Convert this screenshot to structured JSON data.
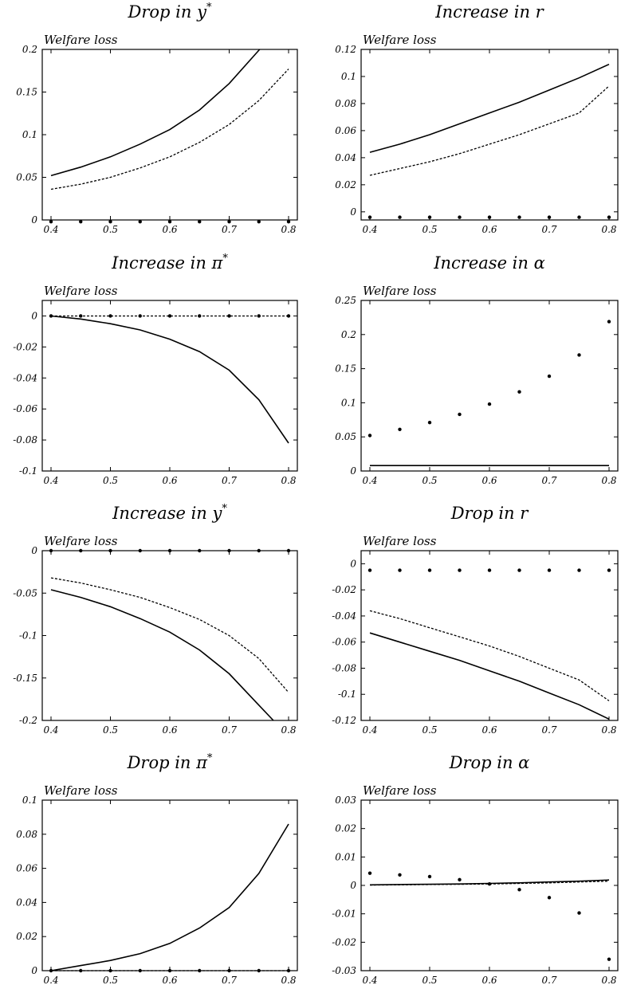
{
  "chart_data": [
    {
      "type": "line",
      "title": "Drop in y",
      "title_sup": "*",
      "ylabel": "Welfare loss",
      "xlim": [
        0.4,
        0.8
      ],
      "ylim": [
        0,
        0.2
      ],
      "xticks": [
        "0.4",
        "0.5",
        "0.6",
        "0.7",
        "0.8"
      ],
      "yticks": [
        {
          "v": 0,
          "label": "0"
        },
        {
          "v": 0.05,
          "label": "0.05"
        },
        {
          "v": 0.1,
          "label": "0.1"
        },
        {
          "v": 0.15,
          "label": "0.15"
        },
        {
          "v": 0.2,
          "label": "0.2"
        }
      ],
      "x": [
        0.4,
        0.45,
        0.5,
        0.55,
        0.6,
        0.65,
        0.7,
        0.75,
        0.8
      ],
      "series": [
        {
          "style": "solid",
          "values": [
            0.052,
            0.062,
            0.074,
            0.089,
            0.106,
            0.129,
            0.16,
            0.199,
            null
          ]
        },
        {
          "style": "dashed",
          "values": [
            0.036,
            0.042,
            0.05,
            0.061,
            0.074,
            0.091,
            0.112,
            0.14,
            0.177
          ]
        },
        {
          "style": "dots",
          "values": [
            -0.002,
            -0.002,
            -0.002,
            -0.002,
            -0.002,
            -0.002,
            -0.002,
            -0.002,
            -0.002
          ]
        }
      ]
    },
    {
      "type": "line",
      "title": "Increase in r",
      "title_sup": "",
      "ylabel": "Welfare loss",
      "xlim": [
        0.4,
        0.8
      ],
      "ylim": [
        -0.006,
        0.12
      ],
      "xticks": [
        "0.4",
        "0.5",
        "0.6",
        "0.7",
        "0.8"
      ],
      "yticks": [
        {
          "v": 0,
          "label": "0"
        },
        {
          "v": 0.02,
          "label": "0.02"
        },
        {
          "v": 0.04,
          "label": "0.04"
        },
        {
          "v": 0.06,
          "label": "0.06"
        },
        {
          "v": 0.08,
          "label": "0.08"
        },
        {
          "v": 0.1,
          "label": "0.1"
        },
        {
          "v": 0.12,
          "label": "0.12"
        }
      ],
      "x": [
        0.4,
        0.45,
        0.5,
        0.55,
        0.6,
        0.65,
        0.7,
        0.75,
        0.8
      ],
      "series": [
        {
          "style": "solid",
          "values": [
            0.044,
            0.05,
            0.057,
            0.065,
            0.073,
            0.081,
            0.09,
            0.099,
            0.109
          ]
        },
        {
          "style": "dashed",
          "values": [
            0.027,
            0.032,
            0.037,
            0.043,
            0.05,
            0.057,
            0.065,
            0.073,
            0.093
          ]
        },
        {
          "style": "dots",
          "values": [
            -0.004,
            -0.004,
            -0.004,
            -0.004,
            -0.004,
            -0.004,
            -0.004,
            -0.004,
            -0.004
          ]
        }
      ]
    },
    {
      "type": "line",
      "title": "Increase in π",
      "title_sup": "*",
      "ylabel": "Welfare loss",
      "xlim": [
        0.4,
        0.8
      ],
      "ylim": [
        -0.1,
        0.01
      ],
      "xticks": [
        "0.4",
        "0.5",
        "0.6",
        "0.7",
        "0.8"
      ],
      "yticks": [
        {
          "v": 0,
          "label": "0"
        },
        {
          "v": -0.02,
          "label": "-0.02"
        },
        {
          "v": -0.04,
          "label": "-0.04"
        },
        {
          "v": -0.06,
          "label": "-0.06"
        },
        {
          "v": -0.08,
          "label": "-0.08"
        },
        {
          "v": -0.1,
          "label": "-0.1"
        }
      ],
      "x": [
        0.4,
        0.45,
        0.5,
        0.55,
        0.6,
        0.65,
        0.7,
        0.75,
        0.8
      ],
      "series": [
        {
          "style": "solid",
          "values": [
            0.0,
            -0.002,
            -0.005,
            -0.009,
            -0.015,
            -0.023,
            -0.035,
            -0.054,
            -0.082
          ]
        },
        {
          "style": "dashed",
          "values": [
            0.0,
            0.0,
            0.0,
            0.0,
            0.0,
            0.0,
            0.0,
            0.0,
            0.0
          ]
        },
        {
          "style": "dots",
          "values": [
            0.0,
            0.0,
            0.0,
            0.0,
            0.0,
            0.0,
            0.0,
            0.0,
            0.0
          ]
        }
      ]
    },
    {
      "type": "line",
      "title": "Increase in α",
      "title_sup": "",
      "ylabel": "Welfare loss",
      "xlim": [
        0.4,
        0.8
      ],
      "ylim": [
        0,
        0.25
      ],
      "xticks": [
        "0.4",
        "0.5",
        "0.6",
        "0.7",
        "0.8"
      ],
      "yticks": [
        {
          "v": 0,
          "label": "0"
        },
        {
          "v": 0.05,
          "label": "0.05"
        },
        {
          "v": 0.1,
          "label": "0.1"
        },
        {
          "v": 0.15,
          "label": "0.15"
        },
        {
          "v": 0.2,
          "label": "0.2"
        },
        {
          "v": 0.25,
          "label": "0.25"
        }
      ],
      "x": [
        0.4,
        0.45,
        0.5,
        0.55,
        0.6,
        0.65,
        0.7,
        0.75,
        0.8
      ],
      "series": [
        {
          "style": "solid",
          "values": [
            0.008,
            0.008,
            0.008,
            0.008,
            0.008,
            0.008,
            0.008,
            0.008,
            0.008
          ]
        },
        {
          "style": "dashed",
          "values": [
            0.008,
            0.008,
            0.008,
            0.008,
            0.008,
            0.008,
            0.008,
            0.008,
            0.008
          ]
        },
        {
          "style": "dots",
          "values": [
            0.052,
            0.061,
            0.071,
            0.083,
            0.098,
            0.116,
            0.139,
            0.17,
            0.219
          ]
        }
      ]
    },
    {
      "type": "line",
      "title": "Increase in y",
      "title_sup": "*",
      "ylabel": "Welfare loss",
      "xlim": [
        0.4,
        0.8
      ],
      "ylim": [
        -0.2,
        0.0
      ],
      "xticks": [
        "0.4",
        "0.5",
        "0.6",
        "0.7",
        "0.8"
      ],
      "yticks": [
        {
          "v": 0,
          "label": "0"
        },
        {
          "v": -0.05,
          "label": "-0.05"
        },
        {
          "v": -0.1,
          "label": "-0.1"
        },
        {
          "v": -0.15,
          "label": "-0.15"
        },
        {
          "v": -0.2,
          "label": "-0.2"
        }
      ],
      "x": [
        0.4,
        0.45,
        0.5,
        0.55,
        0.6,
        0.65,
        0.7,
        0.75,
        0.8
      ],
      "series": [
        {
          "style": "solid",
          "values": [
            -0.046,
            -0.055,
            -0.066,
            -0.08,
            -0.096,
            -0.117,
            -0.145,
            -0.182,
            null
          ]
        },
        {
          "style": "dashed",
          "values": [
            -0.032,
            -0.038,
            -0.046,
            -0.055,
            -0.067,
            -0.081,
            -0.1,
            -0.127,
            -0.167
          ]
        },
        {
          "style": "dots",
          "values": [
            0.0,
            0.0,
            0.0,
            0.0,
            0.0,
            0.0,
            0.0,
            0.0,
            0.0
          ]
        }
      ]
    },
    {
      "type": "line",
      "title": "Drop in r",
      "title_sup": "",
      "ylabel": "Welfare loss",
      "xlim": [
        0.4,
        0.8
      ],
      "ylim": [
        -0.12,
        0.01
      ],
      "xticks": [
        "0.4",
        "0.5",
        "0.6",
        "0.7",
        "0.8"
      ],
      "yticks": [
        {
          "v": 0,
          "label": "0"
        },
        {
          "v": -0.02,
          "label": "-0.02"
        },
        {
          "v": -0.04,
          "label": "-0.04"
        },
        {
          "v": -0.06,
          "label": "-0.06"
        },
        {
          "v": -0.08,
          "label": "-0.08"
        },
        {
          "v": -0.1,
          "label": "-0.1"
        },
        {
          "v": -0.12,
          "label": "-0.12"
        }
      ],
      "x": [
        0.4,
        0.45,
        0.5,
        0.55,
        0.6,
        0.65,
        0.7,
        0.75,
        0.8
      ],
      "series": [
        {
          "style": "solid",
          "values": [
            -0.053,
            -0.06,
            -0.067,
            -0.074,
            -0.082,
            -0.09,
            -0.099,
            -0.108,
            -0.119
          ]
        },
        {
          "style": "dashed",
          "values": [
            -0.036,
            -0.042,
            -0.049,
            -0.056,
            -0.063,
            -0.071,
            -0.08,
            -0.089,
            -0.105
          ]
        },
        {
          "style": "dots",
          "values": [
            -0.005,
            -0.005,
            -0.005,
            -0.005,
            -0.005,
            -0.005,
            -0.005,
            -0.005,
            -0.005
          ]
        }
      ]
    },
    {
      "type": "line",
      "title": "Drop in π",
      "title_sup": "*",
      "ylabel": "Welfare loss",
      "xlim": [
        0.4,
        0.8
      ],
      "ylim": [
        0,
        0.1
      ],
      "xticks": [
        "0.4",
        "0.5",
        "0.6",
        "0.7",
        "0.8"
      ],
      "yticks": [
        {
          "v": 0,
          "label": "0"
        },
        {
          "v": 0.02,
          "label": "0.02"
        },
        {
          "v": 0.04,
          "label": "0.04"
        },
        {
          "v": 0.06,
          "label": "0.06"
        },
        {
          "v": 0.08,
          "label": "0.08"
        },
        {
          "v": 0.1,
          "label": "0.1"
        }
      ],
      "x": [
        0.4,
        0.45,
        0.5,
        0.55,
        0.6,
        0.65,
        0.7,
        0.75,
        0.8
      ],
      "series": [
        {
          "style": "solid",
          "values": [
            0.0,
            0.003,
            0.006,
            0.01,
            0.016,
            0.025,
            0.037,
            0.057,
            0.086
          ]
        },
        {
          "style": "dashed",
          "values": [
            0.0,
            0.0,
            0.0,
            0.0,
            0.0,
            0.0,
            0.0,
            0.0,
            0.0
          ]
        },
        {
          "style": "dots",
          "values": [
            0.0,
            0.0,
            0.0,
            0.0,
            0.0,
            0.0,
            0.0,
            0.0,
            0.0
          ]
        }
      ]
    },
    {
      "type": "line",
      "title": "Drop in α",
      "title_sup": "",
      "ylabel": "Welfare loss",
      "xlim": [
        0.4,
        0.8
      ],
      "ylim": [
        -0.03,
        0.03
      ],
      "xticks": [
        "0.4",
        "0.5",
        "0.6",
        "0.7",
        "0.8"
      ],
      "yticks": [
        {
          "v": -0.03,
          "label": "-0.03"
        },
        {
          "v": -0.02,
          "label": "-0.02"
        },
        {
          "v": -0.01,
          "label": "-0.01"
        },
        {
          "v": 0,
          "label": "0"
        },
        {
          "v": 0.01,
          "label": "0.01"
        },
        {
          "v": 0.02,
          "label": "0.02"
        },
        {
          "v": 0.03,
          "label": "0.03"
        }
      ],
      "x": [
        0.4,
        0.45,
        0.5,
        0.55,
        0.6,
        0.65,
        0.7,
        0.75,
        0.8
      ],
      "series": [
        {
          "style": "solid",
          "values": [
            0.0002,
            0.0003,
            0.0004,
            0.0005,
            0.0007,
            0.0009,
            0.0012,
            0.0015,
            0.0019
          ]
        },
        {
          "style": "dashed",
          "values": [
            0.0001,
            0.0002,
            0.0003,
            0.0004,
            0.0005,
            0.0007,
            0.0009,
            0.0012,
            0.0015
          ]
        },
        {
          "style": "dots",
          "values": [
            0.0043,
            0.0037,
            0.0031,
            0.002,
            0.0005,
            -0.0015,
            -0.0043,
            -0.0097,
            -0.026
          ]
        }
      ]
    }
  ]
}
